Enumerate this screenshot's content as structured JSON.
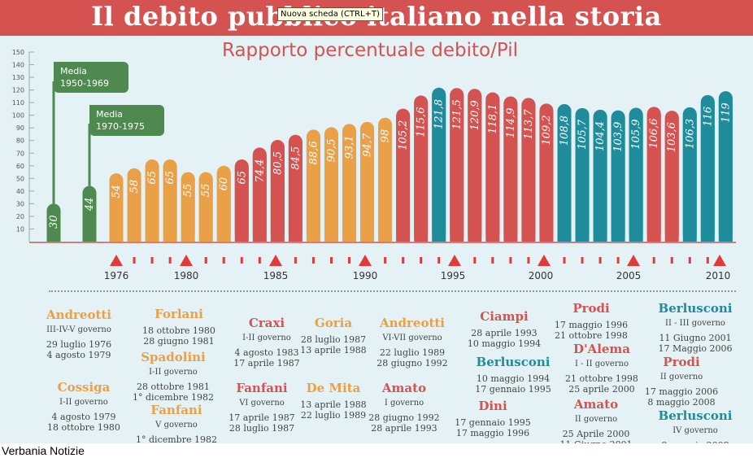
{
  "title": "Il debito pubblico italiano nella storia",
  "tooltip": "Nuova scheda (CTRL+T)",
  "subtitle": "Rapporto percentuale debito/Pil",
  "source": "Verbania Notizie",
  "colors": {
    "red": "#d4524f",
    "green": "#4e8a4f",
    "orange": "#e9a046",
    "teal": "#1f8c9c",
    "background": "#e4f2f6"
  },
  "callouts": {
    "c1": "Media\n1950-1969",
    "c2": "Media\n1970-1975"
  },
  "chart_data": {
    "type": "bar",
    "title": "Rapporto percentuale debito/Pil",
    "ylim": [
      0,
      150
    ],
    "yticks": [
      10,
      20,
      30,
      40,
      50,
      60,
      70,
      80,
      90,
      100,
      110,
      120,
      130,
      140,
      150
    ],
    "averages": [
      {
        "label": "Media 1950-1969",
        "value": 30,
        "display": "30"
      },
      {
        "label": "Media 1970-1975",
        "value": 44,
        "display": "44"
      }
    ],
    "years": [
      1976,
      1977,
      1978,
      1979,
      1980,
      1981,
      1982,
      1983,
      1984,
      1985,
      1986,
      1987,
      1988,
      1989,
      1990,
      1991,
      1992,
      1993,
      1994,
      1995,
      1996,
      1997,
      1998,
      1999,
      2000,
      2001,
      2002,
      2003,
      2004,
      2005,
      2006,
      2007,
      2008,
      2009,
      2010
    ],
    "values": [
      54,
      58,
      65,
      65,
      55,
      55,
      60,
      65,
      74.4,
      80.5,
      84.5,
      88.6,
      90.5,
      93.1,
      94.7,
      98,
      105.2,
      115.6,
      121.8,
      121.5,
      120.9,
      118.1,
      114.9,
      113.7,
      109.2,
      108.8,
      105.7,
      104.4,
      103.9,
      105.9,
      106.6,
      103.6,
      106.3,
      116,
      119
    ],
    "labels": [
      "54",
      "58",
      "65",
      "65",
      "55",
      "55",
      "60",
      "65",
      "74,4",
      "80,5",
      "84,5",
      "88,6",
      "90,5",
      "93,1",
      "94,7",
      "98",
      "105,2",
      "115,6",
      "121,8",
      "121,5",
      "120,9",
      "118,1",
      "114,9",
      "113,7",
      "109,2",
      "108,8",
      "105,7",
      "104,4",
      "103,9",
      "105,9",
      "106,6",
      "103,6",
      "106,3",
      "116",
      "119"
    ],
    "colors": [
      "orange",
      "orange",
      "orange",
      "orange",
      "orange",
      "orange",
      "orange",
      "red",
      "red",
      "red",
      "red",
      "orange",
      "orange",
      "orange",
      "orange",
      "orange",
      "red",
      "red",
      "teal",
      "red",
      "red",
      "red",
      "red",
      "red",
      "red",
      "teal",
      "teal",
      "teal",
      "teal",
      "teal",
      "red",
      "red",
      "teal",
      "teal",
      "teal"
    ],
    "xticks": [
      "1976",
      "1980",
      "1985",
      "1990",
      "1995",
      "2000",
      "2005",
      "2010"
    ]
  },
  "governments": [
    {
      "name": "Andreotti",
      "color": "orange",
      "sub": "III-IV-V governo",
      "dates": [
        "29 luglio 1976",
        "4 agosto 1979"
      ]
    },
    {
      "name": "Cossiga",
      "color": "orange",
      "sub": "I-II governo",
      "dates": [
        "4 agosto 1979",
        "18 ottobre 1980"
      ]
    },
    {
      "name": "Forlani",
      "color": "orange",
      "sub": "",
      "dates": [
        "18 ottobre 1980",
        "28 giugno 1981"
      ]
    },
    {
      "name": "Spadolini",
      "color": "orange",
      "sub": "I-II governo",
      "dates": [
        "28 ottobre 1981",
        "1° dicembre 1982"
      ]
    },
    {
      "name": "Fanfani",
      "color": "orange",
      "sub": "V governo",
      "dates": [
        "1° dicembre 1982",
        "4 agosto 1983"
      ]
    },
    {
      "name": "Craxi",
      "color": "red",
      "sub": "I-II governo",
      "dates": [
        "4 agosto 1983",
        "17 aprile 1987"
      ]
    },
    {
      "name": "Fanfani",
      "color": "red",
      "sub": "VI governo",
      "dates": [
        "17 aprile 1987",
        "28 luglio 1987"
      ]
    },
    {
      "name": "Goria",
      "color": "orange",
      "sub": "",
      "dates": [
        "28 luglio 1987",
        "13 aprile 1988"
      ]
    },
    {
      "name": "De Mita",
      "color": "orange",
      "sub": "",
      "dates": [
        "13 aprile 1988",
        "22 luglio 1989"
      ]
    },
    {
      "name": "Andreotti",
      "color": "orange",
      "sub": "VI-VII governo",
      "dates": [
        "22 luglio 1989",
        "28 giugno 1992"
      ]
    },
    {
      "name": "Amato",
      "color": "red",
      "sub": "I governo",
      "dates": [
        "28 giugno 1992",
        "28 aprile 1993"
      ]
    },
    {
      "name": "Ciampi",
      "color": "red",
      "sub": "",
      "dates": [
        "28 aprile 1993",
        "10 maggio 1994"
      ]
    },
    {
      "name": "Berlusconi",
      "color": "teal",
      "sub": "",
      "dates": [
        "10 maggio 1994",
        "17 gennaio 1995"
      ]
    },
    {
      "name": "Dini",
      "color": "red",
      "sub": "",
      "dates": [
        "17 gennaio 1995",
        "17 maggio 1996"
      ]
    },
    {
      "name": "Prodi",
      "color": "red",
      "sub": "",
      "dates": [
        "17 maggio 1996",
        "21 ottobre 1998"
      ]
    },
    {
      "name": "D'Alema",
      "color": "red",
      "sub": "I - II governo",
      "dates": [
        "21 ottobre 1998",
        "25 aprile 2000"
      ]
    },
    {
      "name": "Amato",
      "color": "red",
      "sub": "II governo",
      "dates": [
        "25 Aprile 2000",
        "11 Giugno 2001"
      ]
    },
    {
      "name": "Berlusconi",
      "color": "teal",
      "sub": "II - III governo",
      "dates": [
        "11 Giugno 2001",
        "17 Maggio 2006"
      ]
    },
    {
      "name": "Prodi",
      "color": "red",
      "sub": "II governo",
      "dates": [
        "17 maggio 2006",
        "8 maggio 2008"
      ]
    },
    {
      "name": "Berlusconi",
      "color": "teal",
      "sub": "IV governo",
      "dates": [
        "8 maggio 2008",
        ""
      ]
    }
  ]
}
